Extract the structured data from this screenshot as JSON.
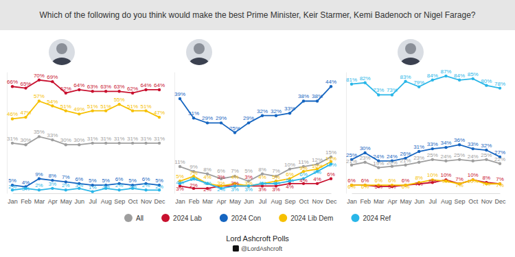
{
  "title": "Which of the following do you think would make the best Prime Minister, Keir Starmer, Kemi Badenoch or Nigel Farage?",
  "source": "Lord Ashcroft Polls",
  "handle": "@LordAshcroft",
  "chart_data": [
    {
      "type": "line",
      "marker": "circle",
      "data_labels": true,
      "tick_labels": "x",
      "legend": "bottom",
      "categories": [
        "Jan",
        "Feb",
        "Mar",
        "Apr",
        "May",
        "Jun",
        "Jul",
        "Aug",
        "Sep",
        "Oct",
        "Nov",
        "Dec"
      ],
      "ylim": [
        0,
        75
      ],
      "series": [
        {
          "name": "All",
          "color": "#9e9e9e",
          "values": [
            31,
            30,
            35,
            33,
            30,
            30,
            31,
            31,
            31,
            31,
            31,
            31
          ],
          "value_labels": [
            "31%",
            "30%",
            "35%",
            "33%",
            "30%",
            "30%",
            "31%",
            "31%",
            "31%",
            "31%",
            "31%",
            "31%"
          ]
        },
        {
          "name": "2024 Lab",
          "color": "#c8102e",
          "values": [
            66,
            65,
            70,
            69,
            62,
            64,
            63,
            63,
            63,
            62,
            64,
            64
          ],
          "value_labels": [
            "66%",
            "65%",
            "70%",
            "69%",
            "62%",
            "64%",
            "63%",
            "63%",
            "63%",
            "62%",
            "64%",
            "64%"
          ]
        },
        {
          "name": "2024 Con",
          "color": "#1565c0",
          "values": [
            5,
            4,
            9,
            8,
            7,
            6,
            5,
            5,
            6,
            5,
            6,
            5
          ],
          "value_labels": [
            "5%",
            "4%",
            "9%",
            "8%",
            "7%",
            "6%",
            "5%",
            "5%",
            "6%",
            "5%",
            "6%",
            "5%"
          ]
        },
        {
          "name": "2024 Lib Dem",
          "color": "#f6c000",
          "values": [
            46,
            47,
            57,
            54,
            51,
            49,
            51,
            51,
            55,
            51,
            51,
            47
          ],
          "value_labels": [
            "46%",
            "47%",
            "57%",
            "54%",
            "51%",
            "49%",
            "51%",
            "51%",
            "55%",
            "51%",
            "51%",
            "47%"
          ]
        },
        {
          "name": "2024 Ref",
          "color": "#29b6e8",
          "values": [
            2,
            3,
            2,
            3,
            2,
            3,
            1,
            3,
            2,
            3,
            2,
            2
          ],
          "value_labels": [
            "2%",
            "3%",
            "2%",
            "3%",
            "2%",
            "3%",
            "1%",
            "3%",
            "2%",
            "3%",
            "2%",
            "2%"
          ]
        }
      ]
    },
    {
      "type": "line",
      "marker": "circle",
      "data_labels": true,
      "tick_labels": "x",
      "categories": [
        "Jan",
        "Feb",
        "Mar",
        "Apr",
        "May",
        "Jun",
        "Jul",
        "Aug",
        "Sep",
        "Oct",
        "Nov",
        "Dec"
      ],
      "ylim": [
        0,
        50
      ],
      "series": [
        {
          "name": "All",
          "color": "#9e9e9e",
          "values": [
            11,
            9,
            8,
            6,
            7,
            5,
            8,
            7,
            10,
            11,
            12,
            15
          ],
          "value_labels": [
            "11%",
            "9%",
            "8%",
            "6%",
            "7%",
            "5%",
            "8%",
            "7%",
            "10%",
            "11%",
            "12%",
            "15%"
          ]
        },
        {
          "name": "2024 Lab",
          "color": "#c8102e",
          "values": [
            3,
            2,
            2,
            3,
            3,
            3,
            3,
            3,
            4,
            4,
            4,
            6
          ],
          "value_labels": [
            "3%",
            "2%",
            "2%",
            "3%",
            "3%",
            "3%",
            "3%",
            "3%",
            "4%",
            "4%",
            "4%",
            "6%"
          ]
        },
        {
          "name": "2024 Con",
          "color": "#1565c0",
          "values": [
            39,
            31,
            29,
            29,
            25,
            29,
            32,
            32,
            33,
            38,
            38,
            44
          ],
          "value_labels": [
            "39%",
            "31%",
            "29%",
            "29%",
            "25%",
            "29%",
            "32%",
            "32%",
            "33%",
            "38%",
            "38%",
            "44%"
          ]
        },
        {
          "name": "2024 Lib Dem",
          "color": "#f6c000",
          "values": [
            5,
            7,
            4,
            3,
            4,
            3,
            4,
            5,
            6,
            9,
            10,
            13
          ],
          "value_labels": [
            "5%",
            "7%",
            "4%",
            "3%",
            "4%",
            "3%",
            "4%",
            "5%",
            "6%",
            "9%",
            "10%",
            "13%"
          ]
        },
        {
          "name": "2024 Ref",
          "color": "#29b6e8",
          "values": [
            4,
            6,
            4,
            2,
            3,
            3,
            4,
            4,
            5,
            6,
            9,
            12
          ],
          "value_labels": [
            "4%",
            "6%",
            "4%",
            "2%",
            "3%",
            "3%",
            "4%",
            "4%",
            "5%",
            "6%",
            "9%",
            "12%"
          ]
        }
      ]
    },
    {
      "type": "line",
      "marker": "circle",
      "data_labels": true,
      "tick_labels": "x",
      "categories": [
        "Jan",
        "Feb",
        "Mar",
        "Apr",
        "May",
        "Jun",
        "Jul",
        "Aug",
        "Sep",
        "Oct",
        "Nov",
        "Dec"
      ],
      "ylim": [
        0,
        90
      ],
      "series": [
        {
          "name": "All",
          "color": "#9e9e9e",
          "values": [
            21,
            23,
            19,
            20,
            21,
            23,
            25,
            24,
            25,
            24,
            25,
            22
          ],
          "value_labels": [
            "21%",
            "23%",
            "19%",
            "20%",
            "21%",
            "23%",
            "25%",
            "24%",
            "25%",
            "24%",
            "25%",
            "22%"
          ]
        },
        {
          "name": "2024 Lab",
          "color": "#c8102e",
          "values": [
            6,
            6,
            5,
            5,
            6,
            7,
            8,
            10,
            7,
            10,
            8,
            7
          ],
          "value_labels": [
            "6%",
            "6%",
            "5%",
            "5%",
            "6%",
            "7%",
            "8%",
            "10%",
            "7%",
            "10%",
            "8%",
            "7%"
          ]
        },
        {
          "name": "2024 Con",
          "color": "#1565c0",
          "values": [
            25,
            30,
            24,
            24,
            26,
            31,
            33,
            34,
            36,
            33,
            32,
            27
          ],
          "value_labels": [
            "25%",
            "30%",
            "24%",
            "24%",
            "26%",
            "31%",
            "33%",
            "34%",
            "36%",
            "33%",
            "32%",
            "27%"
          ]
        },
        {
          "name": "2024 Lib Dem",
          "color": "#f6c000",
          "values": [
            6,
            6,
            6,
            6,
            6,
            8,
            10,
            9,
            7,
            10,
            7,
            7
          ],
          "value_labels": [
            "6%",
            "6%",
            "6%",
            "6%",
            "6%",
            "8%",
            "10%",
            "9%",
            "7%",
            "10%",
            "7%",
            "7%"
          ]
        },
        {
          "name": "2024 Ref",
          "color": "#29b6e8",
          "values": [
            81,
            82,
            73,
            73,
            83,
            79,
            84,
            87,
            84,
            85,
            80,
            78
          ],
          "value_labels": [
            "81%",
            "82%",
            "73%",
            "73%",
            "83%",
            "79%",
            "84%",
            "87%",
            "84%",
            "85%",
            "80%",
            "78%"
          ]
        }
      ]
    }
  ]
}
